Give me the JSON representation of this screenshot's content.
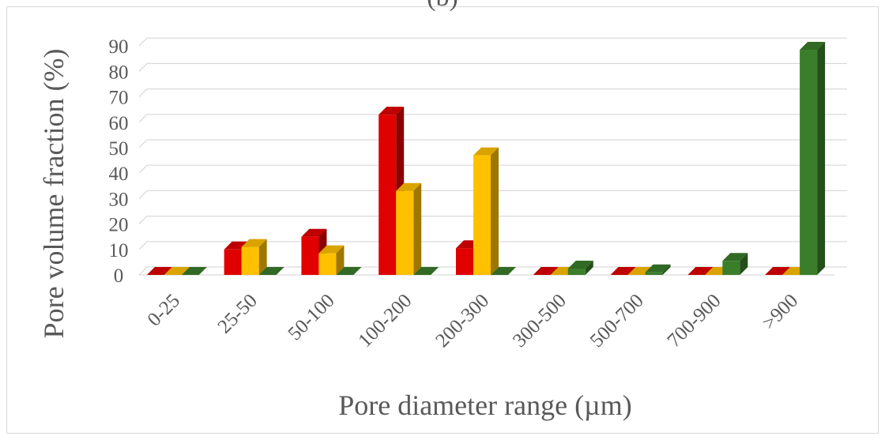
{
  "chart_data": {
    "type": "bar",
    "title": "(b)",
    "xlabel": "Pore diameter range (µm)",
    "ylabel": "Pore volume fraction (%)",
    "categories": [
      "0-25",
      "25-50",
      "50-100",
      "100-200",
      "200-300",
      "300-500",
      "500-700",
      "700-900",
      ">900"
    ],
    "series": [
      {
        "color": "#e00000",
        "values": [
          0,
          10,
          15,
          63,
          10.5,
          0,
          0,
          0,
          0
        ]
      },
      {
        "color": "#ffc000",
        "values": [
          0,
          11,
          8.5,
          33,
          47,
          0,
          0,
          0,
          0
        ]
      },
      {
        "color": "#3a7d2a",
        "values": [
          0,
          0,
          0,
          0,
          0,
          2.5,
          1,
          5.5,
          88.5
        ]
      }
    ],
    "ylim": [
      0,
      90
    ],
    "yticks": [
      0,
      10,
      20,
      30,
      40,
      50,
      60,
      70,
      80,
      90
    ],
    "grid": true,
    "legend": "none",
    "style": "3d-clustered-column"
  }
}
